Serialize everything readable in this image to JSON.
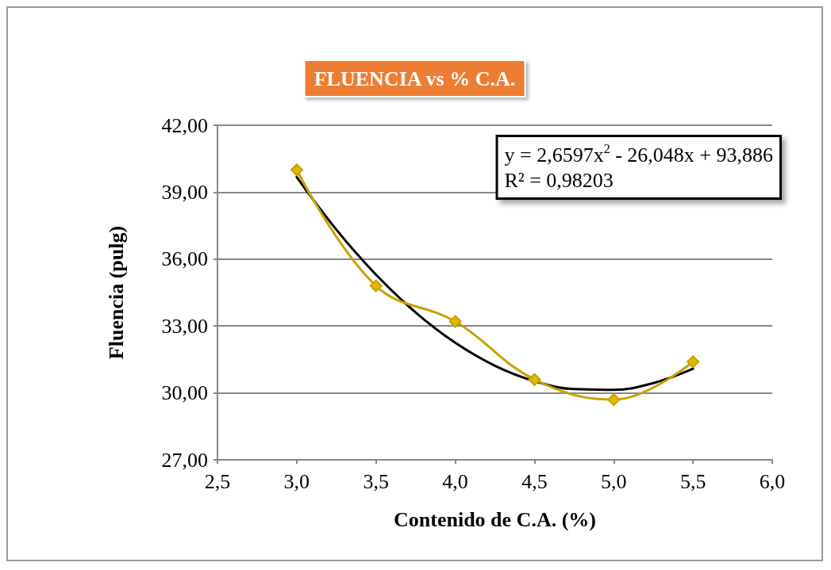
{
  "chart_data": {
    "type": "line",
    "title": "FLUENCIA vs % C.A.",
    "xlabel": "Contenido de C.A. (%)",
    "ylabel": "Fluencia (pulg)",
    "x": [
      3.0,
      3.5,
      4.0,
      4.5,
      5.0,
      5.5
    ],
    "series": [
      {
        "color": "#c9a000",
        "marker": "diamond",
        "values": [
          40.0,
          34.8,
          33.2,
          30.6,
          29.7,
          31.4
        ]
      },
      {
        "type": "line",
        "color": "#000000",
        "marker": "none",
        "x": [
          3.0,
          3.25,
          3.5,
          3.75,
          4.0,
          4.25,
          4.5,
          4.75,
          5.0,
          5.25,
          5.5
        ],
        "values": [
          39.68,
          37.32,
          35.3,
          33.61,
          32.25,
          31.22,
          30.53,
          30.17,
          30.14,
          30.44,
          31.08
        ]
      }
    ],
    "xlim": [
      2.5,
      6.0
    ],
    "xticks": [
      {
        "value": 2.5,
        "label": "2,5"
      },
      {
        "value": 3.0,
        "label": "3,0"
      },
      {
        "value": 3.5,
        "label": "3,5"
      },
      {
        "value": 4.0,
        "label": "4,0"
      },
      {
        "value": 4.5,
        "label": "4,5"
      },
      {
        "value": 5.0,
        "label": "5,0"
      },
      {
        "value": 5.5,
        "label": "5,5"
      },
      {
        "value": 6.0,
        "label": "6,0"
      }
    ],
    "ylim": [
      27,
      42
    ],
    "yticks": [
      {
        "value": 27,
        "label": "27,00"
      },
      {
        "value": 30,
        "label": "30,00"
      },
      {
        "value": 33,
        "label": "33,00"
      },
      {
        "value": 36,
        "label": "36,00"
      },
      {
        "value": 39,
        "label": "39,00"
      },
      {
        "value": 42,
        "label": "42,00"
      }
    ],
    "grid": "y",
    "annotations": [
      "y = 2,6597x$^{2}$ - 26,048x + 93,886",
      "R² = 0,98203"
    ]
  }
}
